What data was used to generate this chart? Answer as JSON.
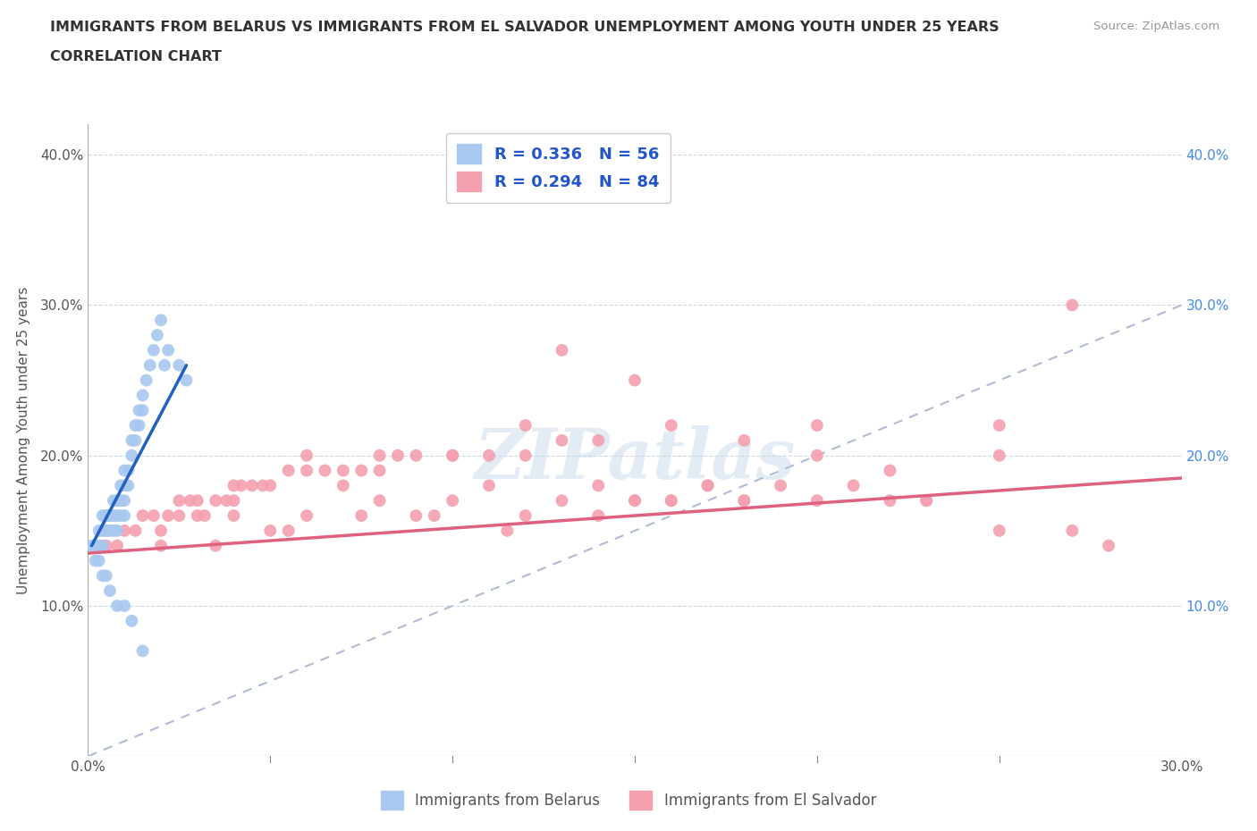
{
  "title_line1": "IMMIGRANTS FROM BELARUS VS IMMIGRANTS FROM EL SALVADOR UNEMPLOYMENT AMONG YOUTH UNDER 25 YEARS",
  "title_line2": "CORRELATION CHART",
  "source": "Source: ZipAtlas.com",
  "ylabel": "Unemployment Among Youth under 25 years",
  "xlim": [
    0.0,
    0.3
  ],
  "ylim": [
    0.0,
    0.42
  ],
  "legend_belarus_r": "0.336",
  "legend_belarus_n": "56",
  "legend_salvador_r": "0.294",
  "legend_salvador_n": "84",
  "belarus_color": "#a8c8f0",
  "salvador_color": "#f4a0b0",
  "belarus_line_color": "#2060c0",
  "salvador_line_color": "#e06080",
  "diagonal_color": "#b0bcd4",
  "watermark": "ZIPatlas",
  "belarus_scatter_x": [
    0.002,
    0.003,
    0.003,
    0.004,
    0.004,
    0.004,
    0.005,
    0.005,
    0.005,
    0.005,
    0.006,
    0.006,
    0.006,
    0.007,
    0.007,
    0.007,
    0.008,
    0.008,
    0.008,
    0.008,
    0.009,
    0.009,
    0.009,
    0.01,
    0.01,
    0.01,
    0.01,
    0.011,
    0.011,
    0.012,
    0.012,
    0.013,
    0.013,
    0.014,
    0.014,
    0.015,
    0.015,
    0.016,
    0.017,
    0.018,
    0.019,
    0.02,
    0.021,
    0.022,
    0.025,
    0.027,
    0.001,
    0.002,
    0.003,
    0.004,
    0.005,
    0.006,
    0.008,
    0.01,
    0.012,
    0.015
  ],
  "belarus_scatter_y": [
    0.14,
    0.15,
    0.14,
    0.15,
    0.16,
    0.14,
    0.16,
    0.15,
    0.15,
    0.16,
    0.16,
    0.15,
    0.16,
    0.16,
    0.15,
    0.17,
    0.17,
    0.16,
    0.17,
    0.15,
    0.17,
    0.16,
    0.18,
    0.17,
    0.18,
    0.16,
    0.19,
    0.18,
    0.19,
    0.2,
    0.21,
    0.21,
    0.22,
    0.22,
    0.23,
    0.23,
    0.24,
    0.25,
    0.26,
    0.27,
    0.28,
    0.29,
    0.26,
    0.27,
    0.26,
    0.25,
    0.14,
    0.13,
    0.13,
    0.12,
    0.12,
    0.11,
    0.1,
    0.1,
    0.09,
    0.07
  ],
  "salvador_scatter_x": [
    0.005,
    0.008,
    0.01,
    0.013,
    0.015,
    0.018,
    0.02,
    0.022,
    0.025,
    0.025,
    0.028,
    0.03,
    0.032,
    0.035,
    0.038,
    0.04,
    0.042,
    0.045,
    0.048,
    0.05,
    0.055,
    0.06,
    0.065,
    0.07,
    0.075,
    0.08,
    0.085,
    0.09,
    0.1,
    0.11,
    0.12,
    0.13,
    0.14,
    0.15,
    0.16,
    0.17,
    0.18,
    0.19,
    0.2,
    0.21,
    0.22,
    0.23,
    0.25,
    0.27,
    0.28,
    0.03,
    0.04,
    0.05,
    0.06,
    0.07,
    0.08,
    0.09,
    0.1,
    0.11,
    0.12,
    0.14,
    0.15,
    0.16,
    0.17,
    0.18,
    0.12,
    0.13,
    0.2,
    0.22,
    0.18,
    0.16,
    0.14,
    0.25,
    0.27,
    0.04,
    0.06,
    0.08,
    0.1,
    0.13,
    0.15,
    0.2,
    0.23,
    0.25,
    0.02,
    0.035,
    0.055,
    0.075,
    0.095,
    0.115
  ],
  "salvador_scatter_y": [
    0.14,
    0.14,
    0.15,
    0.15,
    0.16,
    0.16,
    0.15,
    0.16,
    0.16,
    0.17,
    0.17,
    0.17,
    0.16,
    0.17,
    0.17,
    0.18,
    0.18,
    0.18,
    0.18,
    0.18,
    0.19,
    0.19,
    0.19,
    0.19,
    0.19,
    0.2,
    0.2,
    0.2,
    0.2,
    0.2,
    0.2,
    0.17,
    0.18,
    0.17,
    0.17,
    0.18,
    0.17,
    0.18,
    0.17,
    0.18,
    0.17,
    0.17,
    0.2,
    0.15,
    0.14,
    0.16,
    0.16,
    0.15,
    0.16,
    0.18,
    0.17,
    0.16,
    0.17,
    0.18,
    0.16,
    0.16,
    0.17,
    0.17,
    0.18,
    0.17,
    0.22,
    0.21,
    0.2,
    0.19,
    0.21,
    0.22,
    0.21,
    0.22,
    0.3,
    0.17,
    0.2,
    0.19,
    0.2,
    0.27,
    0.25,
    0.22,
    0.17,
    0.15,
    0.14,
    0.14,
    0.15,
    0.16,
    0.16,
    0.15
  ],
  "belarus_line_x": [
    0.001,
    0.027
  ],
  "belarus_line_y": [
    0.14,
    0.26
  ],
  "salvador_line_x": [
    0.0,
    0.3
  ],
  "salvador_line_y": [
    0.135,
    0.185
  ]
}
